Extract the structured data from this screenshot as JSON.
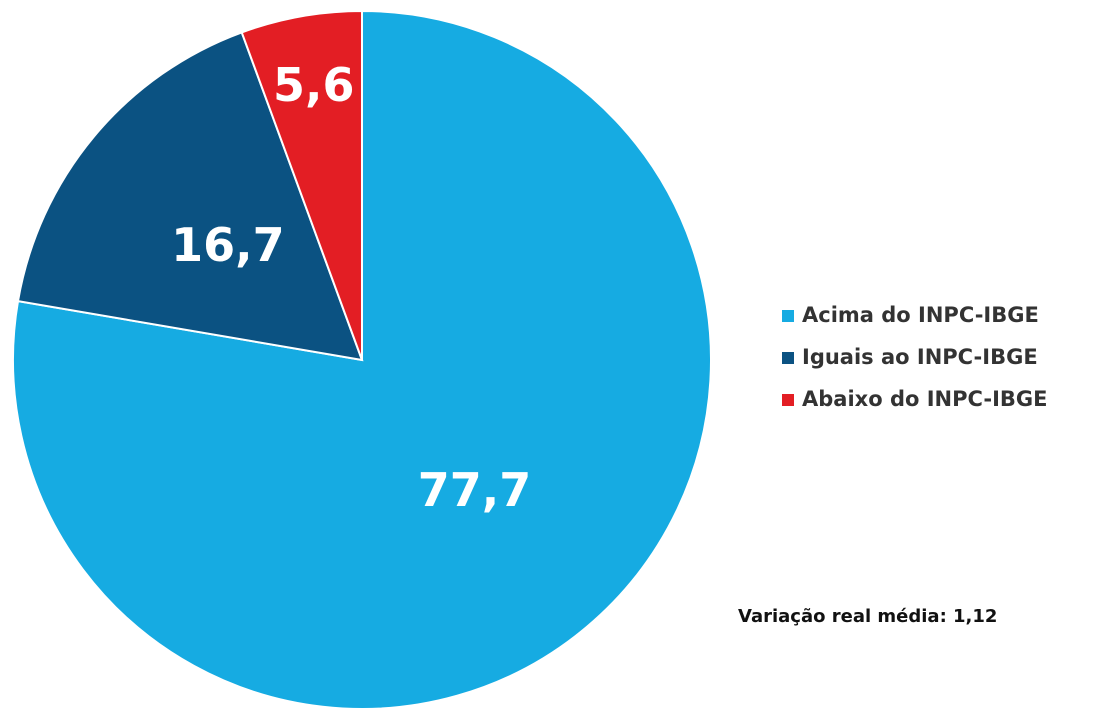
{
  "chart_data": {
    "type": "pie",
    "categories": [
      "Acima do INPC-IBGE",
      "Iguais ao INPC-IBGE",
      "Abaixo do INPC-IBGE"
    ],
    "values": [
      77.7,
      16.7,
      5.6
    ],
    "value_labels": [
      "77,7",
      "16,7",
      "5,6"
    ],
    "colors": [
      "#16abe2",
      "#0b5282",
      "#e31e24"
    ],
    "annotation": "Variação real média: 1,12"
  }
}
